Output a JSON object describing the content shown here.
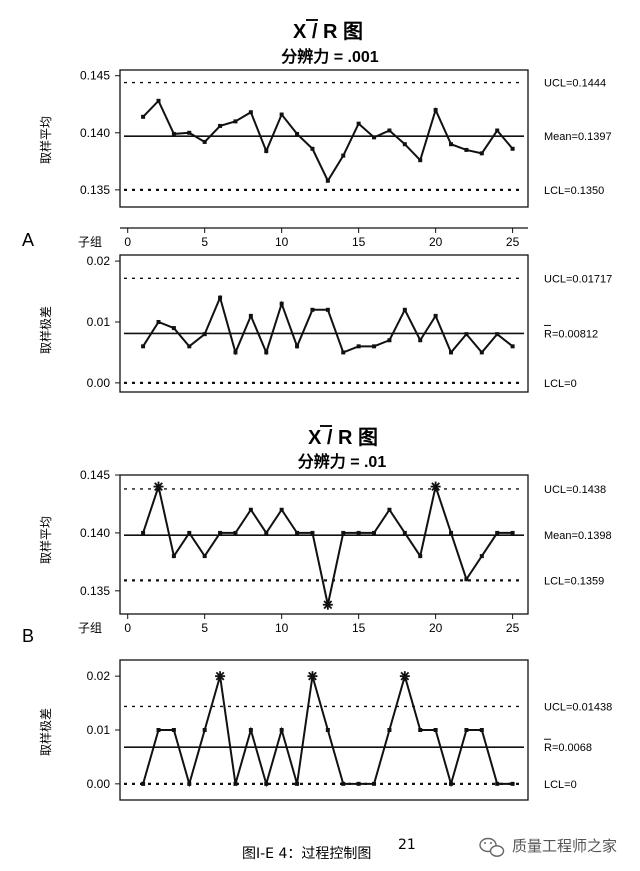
{
  "caption": {
    "text": "图I-E 4：过程控制图",
    "sup": "21"
  },
  "watermark": {
    "text": "质量工程师之家",
    "icon": "wechat-icon"
  },
  "sections": [
    {
      "label": "A",
      "title_main": "X / R 图",
      "title_sub": "分辨力 = .001"
    },
    {
      "label": "B",
      "title_main": "X / R 图",
      "title_sub": "分辨力 = .01"
    }
  ],
  "chart_data": [
    {
      "type": "line",
      "panel": "A-xbar",
      "ylabel": "取样平均",
      "xlabel": "子组",
      "ylim": [
        0.1335,
        0.1455
      ],
      "yticks": [
        "0.135",
        "0.140",
        "0.145"
      ],
      "ytick_values": [
        0.135,
        0.14,
        0.145
      ],
      "xticks": [
        0,
        5,
        10,
        15,
        20,
        25
      ],
      "xlim": [
        -0.5,
        26
      ],
      "ucl": 0.1444,
      "ucl_label": "UCL=0.1444",
      "center": 0.1397,
      "center_label": "Mean=0.1397",
      "lcl": 0.135,
      "lcl_label": "LCL=0.1350",
      "x": [
        1,
        2,
        3,
        4,
        5,
        6,
        7,
        8,
        9,
        10,
        11,
        12,
        13,
        14,
        15,
        16,
        17,
        18,
        19,
        20,
        21,
        22,
        23,
        24,
        25
      ],
      "values": [
        0.1414,
        0.1428,
        0.1399,
        0.14,
        0.1392,
        0.1406,
        0.141,
        0.1418,
        0.1384,
        0.1416,
        0.1399,
        0.1386,
        0.1358,
        0.138,
        0.1408,
        0.1396,
        0.1402,
        0.139,
        0.1376,
        0.142,
        0.139,
        0.1385,
        0.1382,
        0.1402,
        0.1386
      ],
      "flagged": []
    },
    {
      "type": "line",
      "panel": "A-range",
      "ylabel": "取样极差",
      "ylim": [
        -0.0015,
        0.021
      ],
      "yticks": [
        "0.00",
        "0.01",
        "0.02"
      ],
      "ytick_values": [
        0,
        0.01,
        0.02
      ],
      "xlim": [
        -0.5,
        26
      ],
      "ucl": 0.01717,
      "ucl_label": "UCL=0.01717",
      "center": 0.00812,
      "center_label": "R=0.00812",
      "lcl": 0,
      "lcl_label": "LCL=0",
      "x": [
        1,
        2,
        3,
        4,
        5,
        6,
        7,
        8,
        9,
        10,
        11,
        12,
        13,
        14,
        15,
        16,
        17,
        18,
        19,
        20,
        21,
        22,
        23,
        24,
        25
      ],
      "values": [
        0.006,
        0.01,
        0.009,
        0.006,
        0.008,
        0.014,
        0.005,
        0.011,
        0.005,
        0.013,
        0.006,
        0.012,
        0.012,
        0.005,
        0.006,
        0.006,
        0.007,
        0.012,
        0.007,
        0.011,
        0.005,
        0.008,
        0.005,
        0.008,
        0.006
      ],
      "flagged": []
    },
    {
      "type": "line",
      "panel": "B-xbar",
      "ylabel": "取样平均",
      "xlabel": "子组",
      "ylim": [
        0.133,
        0.145
      ],
      "yticks": [
        "0.135",
        "0.140",
        "0.145"
      ],
      "ytick_values": [
        0.135,
        0.14,
        0.145
      ],
      "xticks": [
        0,
        5,
        10,
        15,
        20,
        25
      ],
      "xlim": [
        -0.5,
        26
      ],
      "ucl": 0.1438,
      "ucl_label": "UCL=0.1438",
      "center": 0.1398,
      "center_label": "Mean=0.1398",
      "lcl": 0.1359,
      "lcl_label": "LCL=0.1359",
      "x": [
        1,
        2,
        3,
        4,
        5,
        6,
        7,
        8,
        9,
        10,
        11,
        12,
        13,
        14,
        15,
        16,
        17,
        18,
        19,
        20,
        21,
        22,
        23,
        24,
        25
      ],
      "values": [
        0.14,
        0.144,
        0.138,
        0.14,
        0.138,
        0.14,
        0.14,
        0.142,
        0.14,
        0.142,
        0.14,
        0.14,
        0.1338,
        0.14,
        0.14,
        0.14,
        0.142,
        0.14,
        0.138,
        0.144,
        0.14,
        0.136,
        0.138,
        0.14,
        0.14
      ],
      "flagged": [
        2,
        13,
        20
      ]
    },
    {
      "type": "line",
      "panel": "B-range",
      "ylabel": "取样极差",
      "ylim": [
        -0.003,
        0.023
      ],
      "yticks": [
        "0.00",
        "0.01",
        "0.02"
      ],
      "ytick_values": [
        0,
        0.01,
        0.02
      ],
      "xlim": [
        -0.5,
        26
      ],
      "ucl": 0.01438,
      "ucl_label": "UCL=0.01438",
      "center": 0.0068,
      "center_label": "R=0.0068",
      "lcl": 0,
      "lcl_label": "LCL=0",
      "x": [
        1,
        2,
        3,
        4,
        5,
        6,
        7,
        8,
        9,
        10,
        11,
        12,
        13,
        14,
        15,
        16,
        17,
        18,
        19,
        20,
        21,
        22,
        23,
        24,
        25
      ],
      "values": [
        0.0,
        0.01,
        0.01,
        0.0,
        0.01,
        0.02,
        0.0,
        0.01,
        0.0,
        0.01,
        0.0,
        0.02,
        0.01,
        0.0,
        0.0,
        0.0,
        0.01,
        0.02,
        0.01,
        0.01,
        0.0,
        0.01,
        0.01,
        0.0,
        0.0
      ],
      "flagged": [
        6,
        12,
        18
      ]
    }
  ]
}
